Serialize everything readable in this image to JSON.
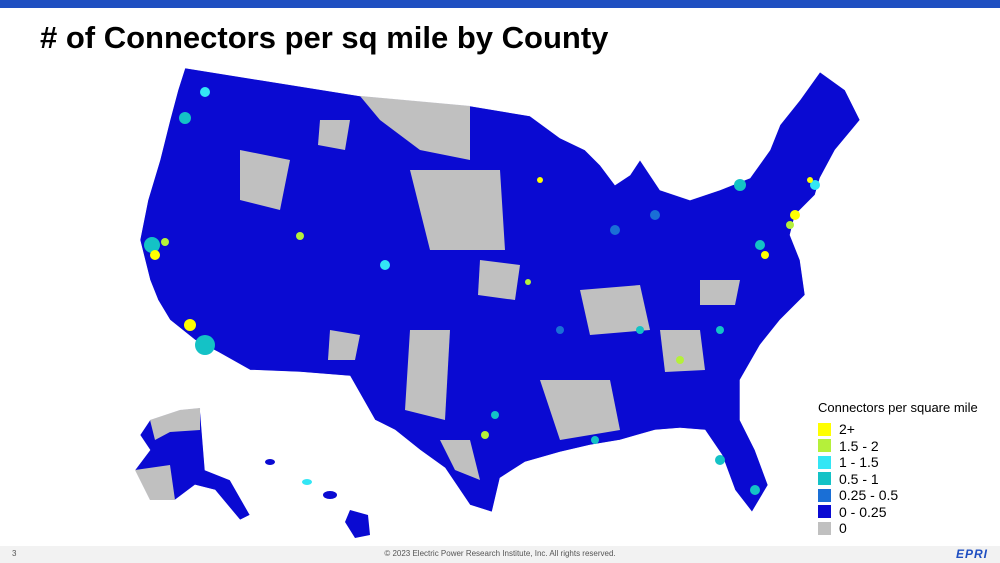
{
  "header": {
    "title": "# of Connectors per sq mile by County"
  },
  "legend": {
    "title": "Connectors per square mile",
    "items": [
      {
        "label": "2+",
        "color": "#ffff00"
      },
      {
        "label": "1.5 - 2",
        "color": "#b5f03a"
      },
      {
        "label": "1 - 1.5",
        "color": "#33e6f5"
      },
      {
        "label": "0.5 - 1",
        "color": "#14c2c6"
      },
      {
        "label": "0.25 - 0.5",
        "color": "#1a6fd6"
      },
      {
        "label": "0 - 0.25",
        "color": "#0a0ad2"
      },
      {
        "label": "0",
        "color": "#c0c0c0"
      }
    ]
  },
  "footer": {
    "page_number": "3",
    "copyright": "© 2023 Electric Power Research Institute, Inc. All rights reserved.",
    "logo": "EPRI"
  }
}
